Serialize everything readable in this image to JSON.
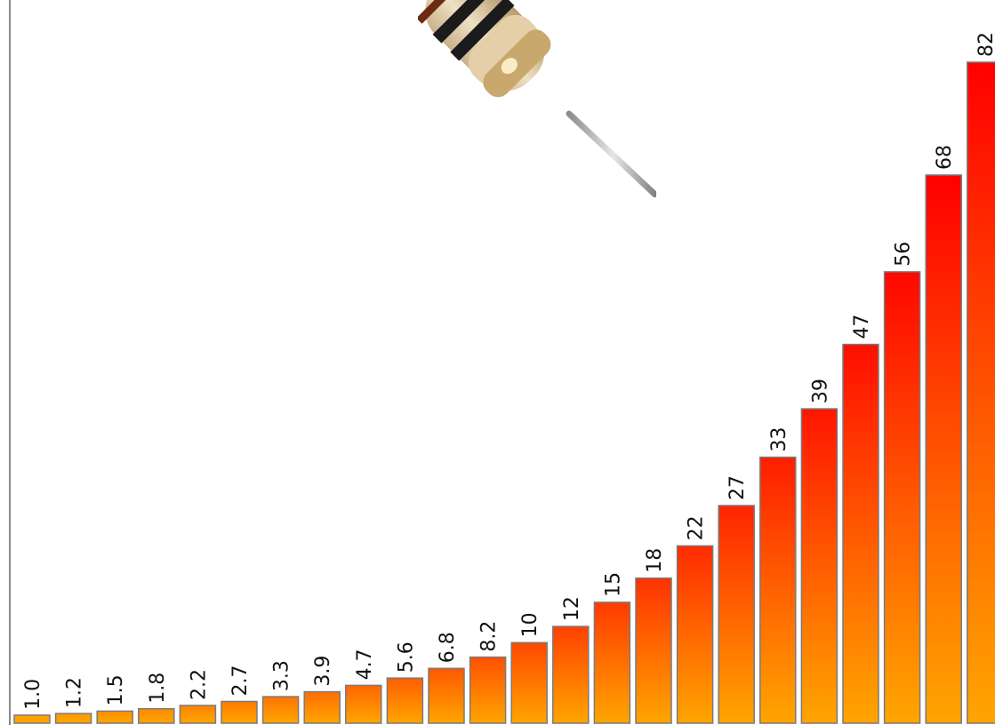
{
  "chart_data": {
    "type": "bar",
    "title": "",
    "xlabel": "",
    "ylabel": "",
    "categories": [
      "1.0",
      "1.2",
      "1.5",
      "1.8",
      "2.2",
      "2.7",
      "3.3",
      "3.9",
      "4.7",
      "5.6",
      "6.8",
      "8.2",
      "10",
      "12",
      "15",
      "18",
      "22",
      "27",
      "33",
      "39",
      "47",
      "56",
      "68",
      "82"
    ],
    "values": [
      1.0,
      1.2,
      1.5,
      1.8,
      2.2,
      2.7,
      3.3,
      3.9,
      4.7,
      5.6,
      6.8,
      8.2,
      10,
      12,
      15,
      18,
      22,
      27,
      33,
      39,
      47,
      56,
      68,
      82
    ],
    "ylim": [
      0,
      88
    ],
    "grid": false,
    "legend": "none",
    "colors": {
      "low": "#FFA000",
      "high": "#FF0000",
      "bar_bottom": "#FFA500",
      "axis": "#7f7f7f"
    }
  },
  "illustration": {
    "icon": "resistor-icon"
  }
}
